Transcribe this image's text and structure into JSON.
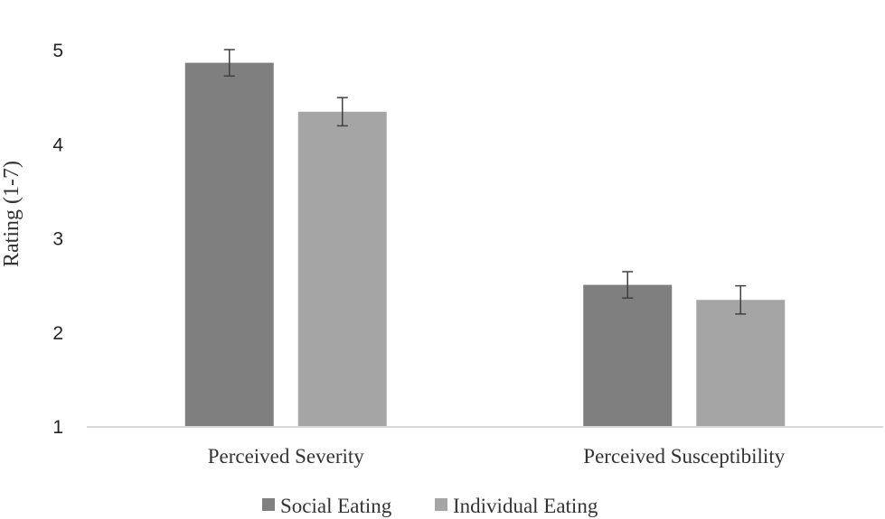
{
  "chart_data": {
    "type": "bar",
    "title": "",
    "xlabel": "",
    "ylabel": "Rating (1-7)",
    "ylim": [
      1,
      5
    ],
    "yticks": [
      1,
      2,
      3,
      4,
      5
    ],
    "grid": false,
    "legend_position": "bottom-center",
    "categories": [
      "Perceived Severity",
      "Perceived Susceptibility"
    ],
    "series": [
      {
        "name": "Social Eating",
        "color": "#7f7f7f",
        "values": [
          4.87,
          2.51
        ],
        "errors": [
          0.14,
          0.14
        ]
      },
      {
        "name": "Individual Eating",
        "color": "#a5a5a5",
        "values": [
          4.35,
          2.35
        ],
        "errors": [
          0.15,
          0.15
        ]
      }
    ],
    "axis_color": "#d9d9d9",
    "errorbar_color": "#404040"
  }
}
